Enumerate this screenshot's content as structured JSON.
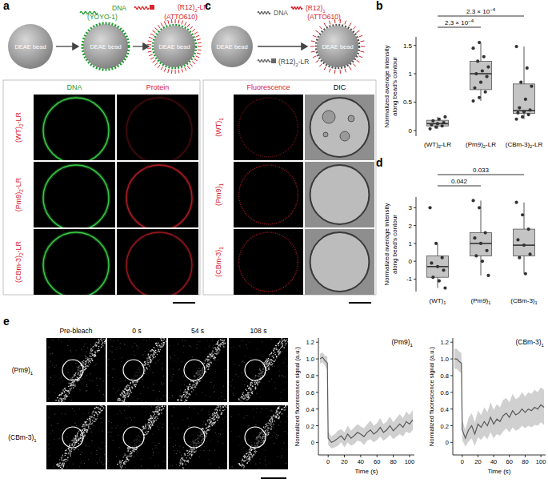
{
  "panel_a": {
    "letter": "a",
    "bead": "DEAE bead",
    "dna_label": "DNA",
    "dna_dye": "(YOYO-1)",
    "protein_label": "(R12)2-LR",
    "protein_dye": "(ATTO610)",
    "columns": [
      "DNA",
      "Protein"
    ],
    "rows": [
      "(WT)2-LR",
      "(Pm9)2-LR",
      "(CBm-3)2-LR"
    ]
  },
  "panel_c": {
    "letter": "c",
    "bead": "DEAE bead",
    "dna_label": "DNA",
    "protein_label": "(R12)1",
    "protein_dye": "(ATTO610)",
    "second_protein_label": "(R12)2-LR",
    "columns": [
      "Fluorescence",
      "DIC"
    ],
    "rows": [
      "(WT)1",
      "(Pm9)1",
      "(CBm-3)1"
    ]
  },
  "panel_e": {
    "letter": "e",
    "columns": [
      "Pre-bleach",
      "0 s",
      "54 s",
      "108 s"
    ],
    "rows": [
      "(Pm9)1",
      "(CBm-3)1"
    ]
  },
  "chart_data": [
    {
      "type": "box",
      "panel_label": "b",
      "ylabel": [
        "Normalized average intensity",
        "along bead's contour"
      ],
      "categories": [
        "(WT)2-LR",
        "(Pm9)2-LR",
        "(CBm-3)2-LR"
      ],
      "boxes": [
        {
          "min": 0.03,
          "q1": 0.08,
          "median": 0.12,
          "q3": 0.18,
          "max": 0.24
        },
        {
          "min": 0.52,
          "q1": 0.72,
          "median": 1.0,
          "q3": 1.22,
          "max": 1.55
        },
        {
          "min": 0.2,
          "q1": 0.3,
          "median": 0.35,
          "q3": 0.82,
          "max": 1.48
        }
      ],
      "points": [
        [
          0.03,
          0.06,
          0.08,
          0.1,
          0.12,
          0.14,
          0.17,
          0.2,
          0.24
        ],
        [
          0.52,
          0.58,
          0.68,
          0.75,
          0.85,
          0.95,
          1.0,
          1.05,
          1.12,
          1.22,
          1.3,
          1.45,
          1.55
        ],
        [
          0.2,
          0.24,
          0.28,
          0.31,
          0.33,
          0.36,
          0.4,
          0.55,
          0.78,
          0.85,
          1.1,
          1.48
        ]
      ],
      "comparisons": [
        {
          "groups": [
            0,
            2
          ],
          "text": "2.3 × 10",
          "exp": "−4"
        },
        {
          "groups": [
            0,
            1
          ],
          "text": "2.3 × 10",
          "exp": "−4"
        }
      ],
      "ylim": [
        -0.1,
        1.65
      ],
      "yticks": [
        0,
        0.5,
        1,
        1.5
      ]
    },
    {
      "type": "box",
      "panel_label": "d",
      "ylabel": [
        "Normalized average intensity",
        "along bead's contour"
      ],
      "categories": [
        "(WT)1",
        "(Pm9)1",
        "(CBm-3)1"
      ],
      "boxes": [
        {
          "min": -1.5,
          "q1": -0.9,
          "median": -0.3,
          "q3": 0.3,
          "max": 1.0
        },
        {
          "min": -0.8,
          "q1": 0.3,
          "median": 1.0,
          "q3": 1.6,
          "max": 3.4
        },
        {
          "min": -0.7,
          "q1": 0.3,
          "median": 0.9,
          "q3": 1.8,
          "max": 3.3
        }
      ],
      "points": [
        [
          3.0,
          1.0,
          0.2,
          -0.1,
          -0.3,
          -0.5,
          -0.9,
          -1.1,
          -1.5
        ],
        [
          3.4,
          3.0,
          1.6,
          1.3,
          1.0,
          0.6,
          0.3,
          0.0,
          -0.8
        ],
        [
          3.3,
          2.6,
          1.8,
          1.2,
          0.9,
          0.4,
          0.2,
          -0.7
        ]
      ],
      "comparisons": [
        {
          "groups": [
            0,
            2
          ],
          "text": "0.033"
        },
        {
          "groups": [
            0,
            1
          ],
          "text": "0.042"
        }
      ],
      "ylim": [
        -1.7,
        3.6
      ],
      "yticks": [
        -1,
        0,
        1,
        2,
        3
      ]
    },
    {
      "type": "line",
      "title": "(Pm9)1",
      "xlabel": "Time (s)",
      "ylabel": "Normalized fluorescence signal (a.u.)",
      "x": [
        -10,
        -7,
        -4,
        -1,
        0,
        4,
        8,
        12,
        16,
        20,
        24,
        28,
        32,
        36,
        40,
        44,
        48,
        52,
        56,
        60,
        64,
        68,
        72,
        76,
        80,
        84,
        88,
        92,
        96,
        100,
        104
      ],
      "series": [
        {
          "color": "#5a5a5a",
          "values": [
            1.0,
            1.02,
            0.98,
            0.95,
            0.05,
            0.0,
            0.02,
            0.05,
            0.08,
            0.03,
            0.1,
            0.05,
            0.08,
            0.12,
            0.1,
            0.07,
            0.12,
            0.15,
            0.1,
            0.13,
            0.18,
            0.12,
            0.15,
            0.2,
            0.14,
            0.18,
            0.22,
            0.18,
            0.25,
            0.22,
            0.27
          ],
          "error": [
            0.06,
            0.06,
            0.06,
            0.08,
            0.08,
            0.07,
            0.08,
            0.09,
            0.08,
            0.09,
            0.1,
            0.09,
            0.1,
            0.1,
            0.09,
            0.1,
            0.1,
            0.11,
            0.1,
            0.1,
            0.11,
            0.1,
            0.1,
            0.11,
            0.1,
            0.11,
            0.12,
            0.11,
            0.12,
            0.11,
            0.12
          ]
        }
      ],
      "xlim": [
        -12,
        106
      ],
      "xticks": [
        0,
        20,
        40,
        60,
        80,
        100
      ],
      "ylim": [
        -0.15,
        1.25
      ],
      "yticks": [
        0,
        0.2,
        0.4,
        0.6,
        0.8,
        {
          "value": 1,
          "label": "1.0"
        },
        1.2
      ]
    },
    {
      "type": "line",
      "title": "(CBm-3)1",
      "xlabel": "Time (s)",
      "ylabel": "Normalized fluorescence signal (a.u.)",
      "x": [
        -10,
        -7,
        -4,
        -1,
        0,
        4,
        8,
        12,
        16,
        20,
        24,
        28,
        32,
        36,
        40,
        44,
        48,
        52,
        56,
        60,
        64,
        68,
        72,
        76,
        80,
        84,
        88,
        92,
        96,
        100,
        104
      ],
      "series": [
        {
          "color": "#5a5a5a",
          "values": [
            1.0,
            1.0,
            0.97,
            0.95,
            0.15,
            0.05,
            0.15,
            0.2,
            0.1,
            0.22,
            0.18,
            0.25,
            0.2,
            0.3,
            0.22,
            0.28,
            0.25,
            0.32,
            0.35,
            0.3,
            0.38,
            0.33,
            0.35,
            0.4,
            0.36,
            0.4,
            0.38,
            0.42,
            0.4,
            0.45,
            0.42
          ],
          "error": [
            0.12,
            0.12,
            0.12,
            0.12,
            0.12,
            0.1,
            0.14,
            0.15,
            0.14,
            0.16,
            0.15,
            0.17,
            0.16,
            0.18,
            0.17,
            0.18,
            0.17,
            0.19,
            0.18,
            0.18,
            0.2,
            0.19,
            0.19,
            0.2,
            0.19,
            0.2,
            0.2,
            0.21,
            0.2,
            0.21,
            0.21
          ]
        }
      ],
      "xlim": [
        -12,
        106
      ],
      "xticks": [
        0,
        20,
        40,
        60,
        80,
        100
      ],
      "ylim": [
        -0.15,
        1.25
      ],
      "yticks": [
        0,
        0.2,
        0.4,
        0.6,
        0.8,
        {
          "value": 1,
          "label": "1.0"
        },
        1.2
      ]
    }
  ]
}
